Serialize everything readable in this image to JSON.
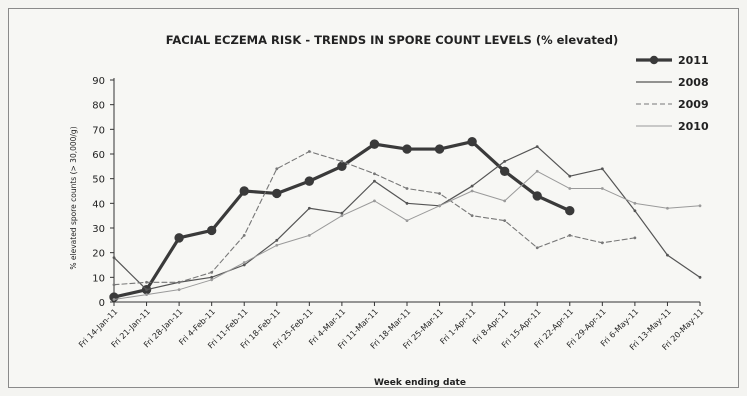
{
  "chart_data": {
    "type": "line",
    "title": "FACIAL ECZEMA RISK - TRENDS IN SPORE COUNT LEVELS (% elevated)",
    "xlabel": "Week ending date",
    "ylabel": "% elevated spore counts (> 30,000/g)",
    "ylim": [
      0,
      90
    ],
    "yticks": [
      0,
      10,
      20,
      30,
      40,
      50,
      60,
      70,
      80,
      90
    ],
    "categories": [
      "Fri 14-Jan-11",
      "Fri 21-Jan-11",
      "Fri 28-Jan-11",
      "Fri 4-Feb-11",
      "Fri 11-Feb-11",
      "Fri 18-Feb-11",
      "Fri 25-Feb-11",
      "Fri 4-Mar-11",
      "Fri 11-Mar-11",
      "Fri 18-Mar-11",
      "Fri 25-Mar-11",
      "Fri 1-Apr-11",
      "Fri 8-Apr-11",
      "Fri 15-Apr-11",
      "Fri 22-Apr-11",
      "Fri 29-Apr-11",
      "Fri 6-May-11",
      "Fri 13-May-11",
      "Fri 20-May-11"
    ],
    "series": [
      {
        "name": "2011",
        "color": "#3a3a3a",
        "style": "thick-marker",
        "values": [
          2,
          5,
          26,
          29,
          45,
          44,
          49,
          55,
          64,
          62,
          62,
          65,
          53,
          43,
          37,
          null,
          null,
          null,
          null
        ]
      },
      {
        "name": "2008",
        "color": "#555555",
        "style": "solid",
        "values": [
          18,
          5,
          8,
          10,
          15,
          25,
          38,
          36,
          49,
          40,
          39,
          47,
          57,
          63,
          51,
          54,
          37,
          19,
          10
        ]
      },
      {
        "name": "2009",
        "color": "#777777",
        "style": "dashed",
        "values": [
          7,
          8,
          8,
          12,
          27,
          54,
          61,
          57,
          52,
          46,
          44,
          35,
          33,
          22,
          27,
          24,
          26,
          null,
          null
        ]
      },
      {
        "name": "2010",
        "color": "#9a9a9a",
        "style": "solid-thin",
        "values": [
          1,
          3,
          5,
          9,
          16,
          23,
          27,
          35,
          41,
          33,
          39,
          45,
          41,
          53,
          46,
          46,
          40,
          38,
          39
        ]
      }
    ],
    "legend": "top-right",
    "grid": false
  }
}
